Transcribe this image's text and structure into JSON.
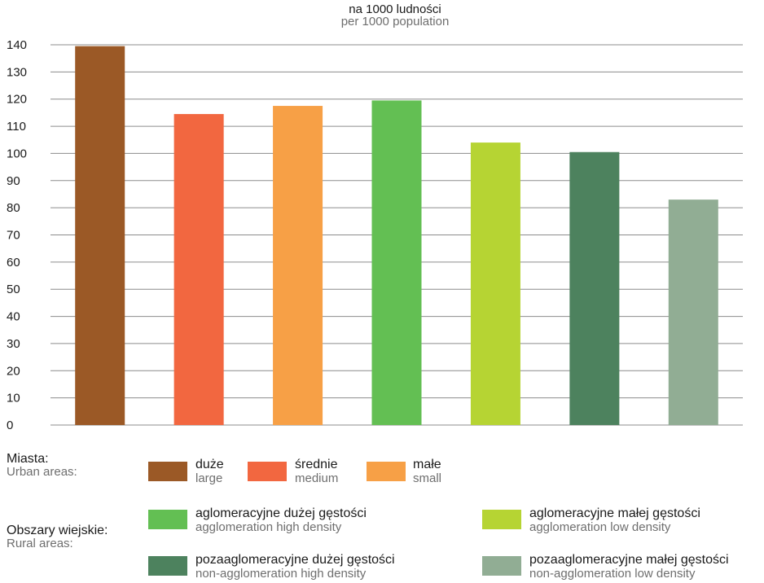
{
  "chart_data": {
    "type": "bar",
    "title_pl": "na 1000 ludności",
    "title_en": "per 1000 population",
    "categories": [
      "duże",
      "średnie",
      "małe",
      "aglomeracyjne dużej gęstości",
      "aglomeracyjne małej gęstości",
      "pozaaglomeracyjne dużej gęstości",
      "pozaaglomeracyjne małej gęstości"
    ],
    "values": [
      139.5,
      114.5,
      117.5,
      119.5,
      104,
      100.5,
      83
    ],
    "colors": [
      "#9b5926",
      "#f26740",
      "#f7a046",
      "#63bf53",
      "#b6d433",
      "#4d825e",
      "#91ad94"
    ],
    "ylim": [
      0,
      140
    ],
    "yticks": [
      0,
      10,
      20,
      30,
      40,
      50,
      60,
      70,
      80,
      90,
      100,
      110,
      120,
      130,
      140
    ],
    "grid": true
  },
  "legend": {
    "urban": {
      "label_pl": "Miasta:",
      "label_en": "Urban areas:",
      "items": [
        {
          "pl": "duże",
          "en": "large",
          "color": "#9b5926"
        },
        {
          "pl": "średnie",
          "en": "medium",
          "color": "#f26740"
        },
        {
          "pl": "małe",
          "en": "small",
          "color": "#f7a046"
        }
      ]
    },
    "rural": {
      "label_pl": "Obszary wiejskie:",
      "label_en": "Rural areas:",
      "items": [
        {
          "pl": "aglomeracyjne dużej gęstości",
          "en": "agglomeration high density",
          "color": "#63bf53"
        },
        {
          "pl": "aglomeracyjne małej gęstości",
          "en": "agglomeration low density",
          "color": "#b6d433"
        },
        {
          "pl": "pozaaglomeracyjne dużej gęstości",
          "en": "non-agglomeration high density",
          "color": "#4d825e"
        },
        {
          "pl": "pozaaglomeracyjne małej gęstości",
          "en": "non-agglomeration low density",
          "color": "#91ad94"
        }
      ]
    }
  }
}
